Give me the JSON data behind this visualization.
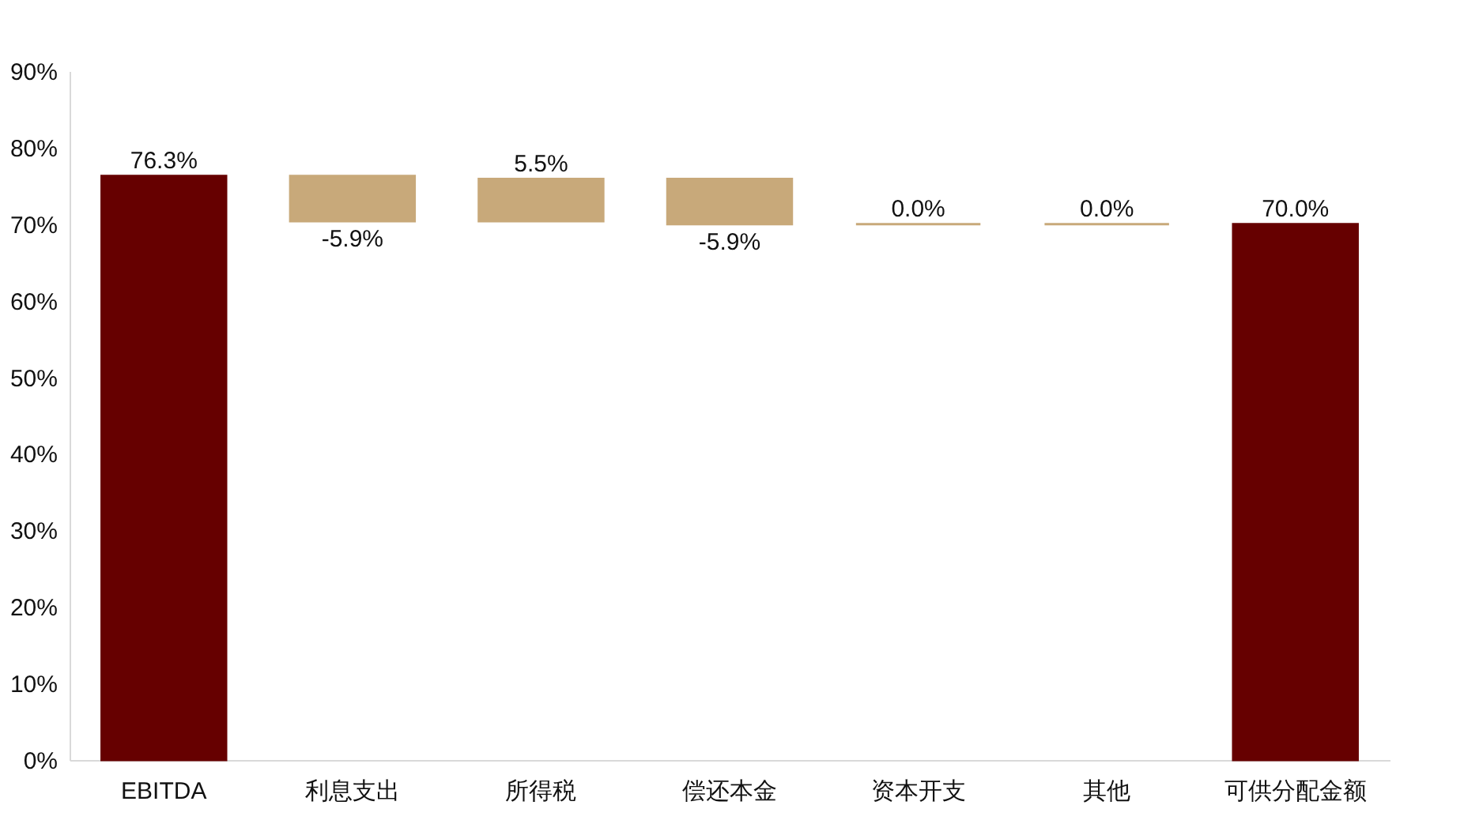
{
  "chart_data": {
    "type": "bar",
    "categories": [
      "EBITDA",
      "利息支出",
      "所得税",
      "偿还本金",
      "资本开支",
      "其他",
      "可供分配金额"
    ],
    "values": [
      76.3,
      -5.9,
      5.5,
      -5.9,
      0.0,
      0.0,
      70.0
    ],
    "base": [
      0,
      76.3,
      70.4,
      75.9,
      70.0,
      70.0,
      0
    ],
    "colors": [
      "#660000",
      "#c8a97a",
      "#c8a97a",
      "#c8a97a",
      "#c8a97a",
      "#c8a97a",
      "#660000"
    ],
    "value_labels": [
      "76.3%",
      "-5.9%",
      "5.5%",
      "-5.9%",
      "0.0%",
      "0.0%",
      "70.0%"
    ],
    "ylim": [
      0,
      90
    ],
    "yticks": [
      {
        "value": 0,
        "label": "0%"
      },
      {
        "value": 10,
        "label": "10%"
      },
      {
        "value": 20,
        "label": "20%"
      },
      {
        "value": 30,
        "label": "30%"
      },
      {
        "value": 40,
        "label": "40%"
      },
      {
        "value": 50,
        "label": "50%"
      },
      {
        "value": 60,
        "label": "60%"
      },
      {
        "value": 70,
        "label": "70%"
      },
      {
        "value": 80,
        "label": "80%"
      },
      {
        "value": 90,
        "label": "90%"
      }
    ],
    "grid": false
  }
}
